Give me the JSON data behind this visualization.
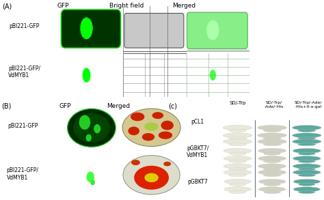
{
  "fig_width": 4.74,
  "fig_height": 2.93,
  "dpi": 100,
  "background_color": "#ffffff",
  "panel_A": {
    "label": "(A)",
    "row_labels": [
      "pBI221-GFP",
      "pBI221-GFP/\nVdMYB1"
    ],
    "col_labels": [
      "GFP",
      "Bright field",
      "Merged"
    ],
    "gfp_bg": "#000000",
    "cell_dark": "#003300",
    "cell_edge": "#00cc00",
    "nucleus_color": "#00ff00",
    "brightfield_bg": "#b8b8b8",
    "brightfield_cell": "#cccccc",
    "merged_bg": "#b0c8b0",
    "merged_cell": "#88ee88",
    "merged_dot": "#44ff44"
  },
  "panel_B": {
    "label": "(B)",
    "row_labels": [
      "pBI221-GFP",
      "pBI221-GFP/\nVdMYB1"
    ],
    "col_labels": [
      "GFP",
      "Merged"
    ],
    "gfp_bg": "#000000",
    "cell_dark": "#002800",
    "cell_mid": "#004400",
    "cell_edge": "#22bb22",
    "dot_color": "#44ff44",
    "dish_top_bg": "#bbbbaa",
    "dish_top_fill": "#ddcc88",
    "dish_bot_bg": "#ccccbb",
    "dish_bot_fill": "#ddddcc",
    "blob_red": "#cc2200",
    "blob_orange": "#cc5500",
    "blob_yellow": "#ddcc00",
    "blob_green": "#338833"
  },
  "panel_C": {
    "label": "(c)",
    "col_labels": [
      "SD/-Trp",
      "SD/-Trp/\n-Ade/-His",
      "SD/-Trp/-Ade/\n-His+X-a-gal"
    ],
    "row_labels": [
      "pCL1",
      "pGBKT7/\nVdMYB1",
      "pGBKT7"
    ],
    "colony_white": "#e8e8dc",
    "colony_faint": "#d0d0c4",
    "colony_blue": "#5ba8a0",
    "bg_left": "#b8bec8",
    "bg_mid": "#b0b8c4",
    "bg_right": "#a8b4c0"
  },
  "text_color": "#000000",
  "fontsize_label": 7,
  "fontsize_col": 6.5,
  "fontsize_row": 5.5
}
